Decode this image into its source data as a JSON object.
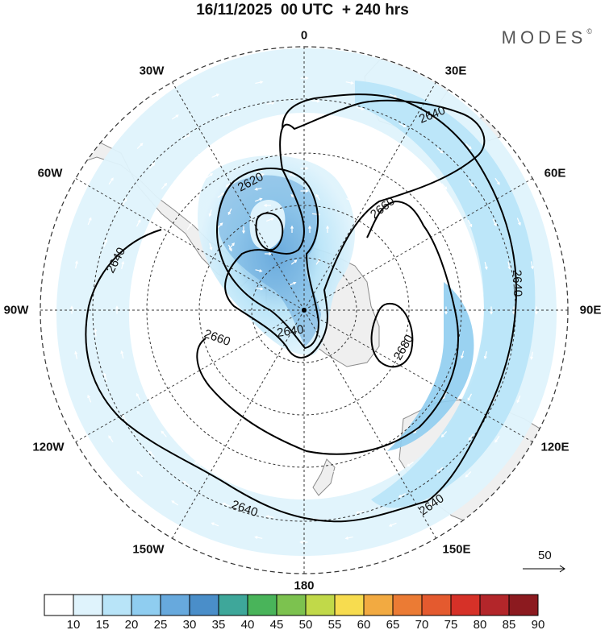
{
  "title": "16/11/2025  00 UTC  + 240 hrs",
  "brand": "MODES",
  "brand_mark": "©",
  "longitude_labels": [
    "0",
    "30E",
    "60E",
    "90E",
    "120E",
    "150E",
    "180",
    "150W",
    "120W",
    "90W",
    "60W",
    "30W"
  ],
  "contour_labels": [
    "2620",
    "2640",
    "2640",
    "2640",
    "2640",
    "2640",
    "2660",
    "2660",
    "2680",
    "2640"
  ],
  "vector_reference": "50",
  "colorbar": {
    "ticks": [
      "10",
      "15",
      "20",
      "25",
      "30",
      "35",
      "40",
      "45",
      "50",
      "55",
      "60",
      "65",
      "70",
      "75",
      "80",
      "85",
      "90"
    ],
    "colors": [
      "#ffffff",
      "#dff3fc",
      "#b8e4f8",
      "#8fcdf0",
      "#67a9dd",
      "#4a8ec9",
      "#3ea79a",
      "#49b45a",
      "#7cc24f",
      "#c1d949",
      "#f7dc4f",
      "#f2aa41",
      "#eb7b34",
      "#e45a2f",
      "#d63128",
      "#b3262a",
      "#8c1a1f"
    ]
  },
  "chart_data": {
    "type": "polar-stereographic map",
    "title": "16/11/2025  00 UTC  + 240 hrs",
    "field_contoured": "geopotential height",
    "contour_values": [
      2620,
      2640,
      2660,
      2680
    ],
    "shaded_field_range": [
      10,
      90
    ],
    "vector_reference_speed": 50
  },
  "colors": {
    "land": "#efefef",
    "coast": "#8a8a8a",
    "grid": "#333333",
    "contour": "#000000",
    "vector": "#ffffff"
  }
}
